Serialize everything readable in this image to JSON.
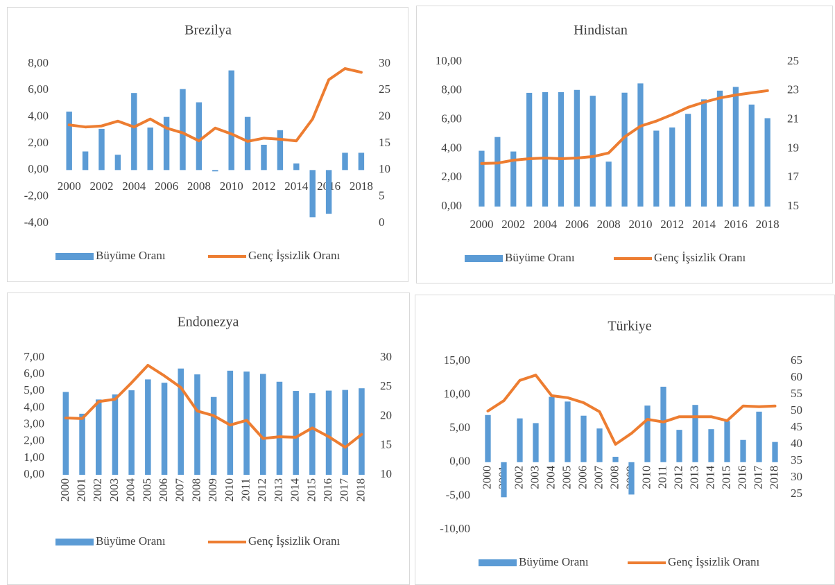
{
  "chart_data": [
    {
      "type": "combo",
      "title": "Brezilya",
      "categories": [
        "2000",
        null,
        "2002",
        null,
        "2004",
        null,
        "2006",
        null,
        "2008",
        null,
        "2010",
        null,
        "2012",
        null,
        "2014",
        null,
        "2016",
        null,
        "2018"
      ],
      "series": [
        {
          "name": "Büyüme Oranı",
          "type": "bar",
          "color": "#5b9bd5",
          "values": [
            4.4,
            1.4,
            3.1,
            1.15,
            5.8,
            3.2,
            4.0,
            6.1,
            5.1,
            -0.1,
            7.5,
            4.0,
            1.9,
            3.0,
            0.5,
            -3.55,
            -3.3,
            1.3,
            1.3
          ]
        },
        {
          "name": "Genç İşsizlik Oranı",
          "type": "line",
          "axis": "y2",
          "color": "#ed7d31",
          "values": [
            18.5,
            18.1,
            18.3,
            19.2,
            18.1,
            19.6,
            17.9,
            17.0,
            15.5,
            17.9,
            16.8,
            15.4,
            16.0,
            15.8,
            15.5,
            19.6,
            27.0,
            29.1,
            28.4
          ]
        }
      ],
      "ylim": [
        -4,
        8
      ],
      "yticks": [
        {
          "value": -4,
          "label": "-4,00"
        },
        {
          "value": -2,
          "label": "-2,00"
        },
        {
          "value": 0,
          "label": "0,00"
        },
        {
          "value": 2,
          "label": "2,00"
        },
        {
          "value": 4,
          "label": "4,00"
        },
        {
          "value": 6,
          "label": "6,00"
        },
        {
          "value": 8,
          "label": "8,00"
        }
      ],
      "y2lim": [
        0,
        30
      ],
      "y2ticks": [
        0,
        5,
        10,
        15,
        20,
        25,
        30
      ],
      "legend": "bottom"
    },
    {
      "type": "combo",
      "title": "Hindistan",
      "categories": [
        "2000",
        null,
        "2002",
        null,
        "2004",
        null,
        "2006",
        null,
        "2008",
        null,
        "2010",
        null,
        "2012",
        null,
        "2014",
        null,
        "2016",
        null,
        "2018"
      ],
      "series": [
        {
          "name": "Büyüme Oranı",
          "type": "bar",
          "color": "#5b9bd5",
          "values": [
            3.85,
            4.8,
            3.8,
            7.85,
            7.9,
            7.9,
            8.05,
            7.65,
            3.1,
            7.86,
            8.5,
            5.24,
            5.46,
            6.4,
            7.4,
            8.0,
            8.26,
            7.04,
            6.1
          ]
        },
        {
          "name": "Genç İşsizlik Oranı",
          "type": "line",
          "axis": "y2",
          "color": "#ed7d31",
          "values": [
            17.97,
            18.0,
            18.2,
            18.3,
            18.35,
            18.3,
            18.35,
            18.45,
            18.7,
            19.8,
            20.55,
            20.9,
            21.35,
            21.85,
            22.2,
            22.5,
            22.7,
            22.85,
            23.0
          ]
        }
      ],
      "ylim": [
        0,
        10
      ],
      "yticks": [
        {
          "value": 0,
          "label": "0,00"
        },
        {
          "value": 2,
          "label": "2,00"
        },
        {
          "value": 4,
          "label": "4,00"
        },
        {
          "value": 6,
          "label": "6,00"
        },
        {
          "value": 8,
          "label": "8,00"
        },
        {
          "value": 10,
          "label": "10,00"
        }
      ],
      "y2lim": [
        15,
        25
      ],
      "y2ticks": [
        15,
        17,
        19,
        21,
        23,
        25
      ],
      "legend": "bottom"
    },
    {
      "type": "combo",
      "title": "Endonezya",
      "categories": [
        "2000",
        "2001",
        "2002",
        "2003",
        "2004",
        "2005",
        "2006",
        "2007",
        "2008",
        "2009",
        "2010",
        "2011",
        "2012",
        "2013",
        "2014",
        "2015",
        "2016",
        "2017",
        "2018"
      ],
      "series": [
        {
          "name": "Büyüme Oranı",
          "type": "bar",
          "color": "#5b9bd5",
          "values": [
            4.95,
            3.65,
            4.5,
            4.8,
            5.05,
            5.7,
            5.5,
            6.35,
            6.0,
            4.65,
            6.22,
            6.17,
            6.03,
            5.56,
            5.01,
            4.88,
            5.03,
            5.07,
            5.17
          ]
        },
        {
          "name": "Genç İşsizlik Oranı",
          "type": "line",
          "axis": "y2",
          "color": "#ed7d31",
          "values": [
            19.7,
            19.6,
            22.5,
            22.9,
            25.7,
            28.7,
            26.9,
            24.9,
            20.9,
            20.1,
            18.5,
            19.3,
            16.2,
            16.5,
            16.4,
            18.0,
            16.5,
            14.7,
            16.9
          ]
        }
      ],
      "ylim": [
        0,
        7
      ],
      "yticks": [
        {
          "value": 0,
          "label": "0,00"
        },
        {
          "value": 1,
          "label": "1,00"
        },
        {
          "value": 2,
          "label": "2,00"
        },
        {
          "value": 3,
          "label": "3,00"
        },
        {
          "value": 4,
          "label": "4,00"
        },
        {
          "value": 5,
          "label": "5,00"
        },
        {
          "value": 6,
          "label": "6,00"
        },
        {
          "value": 7,
          "label": "7,00"
        }
      ],
      "y2lim": [
        10,
        30
      ],
      "y2ticks": [
        10,
        15,
        20,
        25,
        30
      ],
      "legend": "bottom"
    },
    {
      "type": "combo",
      "title": "Türkiye",
      "categories": [
        "2000",
        "2001",
        "2002",
        "2003",
        "2004",
        "2005",
        "2006",
        "2007",
        "2008",
        "2009",
        "2010",
        "2011",
        "2012",
        "2013",
        "2014",
        "2015",
        "2016",
        "2017",
        "2018"
      ],
      "series": [
        {
          "name": "Büyüme Oranı",
          "type": "bar",
          "color": "#5b9bd5",
          "values": [
            7.0,
            -5.2,
            6.5,
            5.8,
            9.7,
            9.0,
            6.9,
            5.0,
            0.8,
            -4.8,
            8.4,
            11.2,
            4.8,
            8.5,
            4.9,
            6.1,
            3.3,
            7.5,
            3.0
          ]
        },
        {
          "name": "Genç İşsizlik Oranı",
          "type": "line",
          "axis": "y2",
          "color": "#ed7d31",
          "values": [
            50.0,
            53.1,
            59.2,
            60.8,
            54.6,
            54.0,
            52.5,
            49.8,
            40.0,
            43.3,
            47.5,
            46.7,
            48.3,
            48.3,
            48.3,
            47.1,
            51.5,
            51.3,
            51.5
          ]
        }
      ],
      "ylim": [
        -10,
        15
      ],
      "yticks": [
        {
          "value": -10,
          "label": "-10,00"
        },
        {
          "value": -5,
          "label": "-5,00"
        },
        {
          "value": 0,
          "label": "0,00"
        },
        {
          "value": 5,
          "label": "5,00"
        },
        {
          "value": 10,
          "label": "10,00"
        },
        {
          "value": 15,
          "label": "15,00"
        }
      ],
      "y2lim": [
        25,
        65
      ],
      "y2ticks": [
        25,
        30,
        35,
        40,
        45,
        50,
        55,
        60,
        65
      ],
      "legend": "bottom"
    }
  ]
}
